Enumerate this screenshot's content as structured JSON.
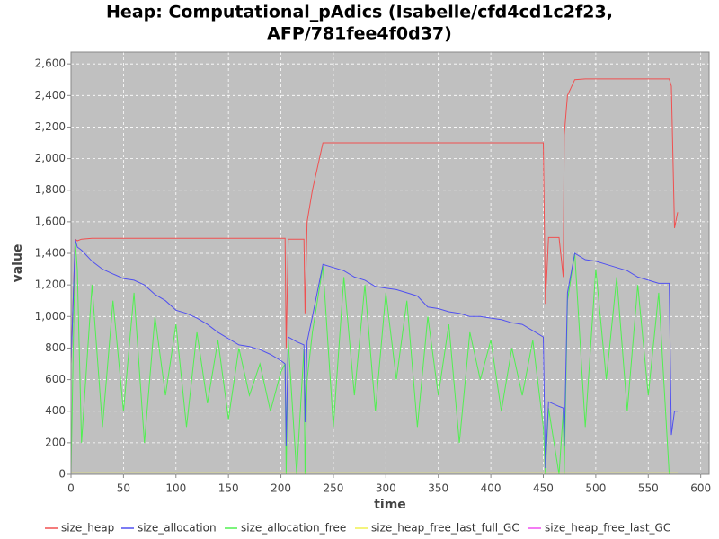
{
  "chart_data": {
    "type": "line",
    "title": "Heap: Computational_pAdics (Isabelle/cfd4cd1c2f23,",
    "subtitle": "AFP/781fee4f0d37)",
    "x_label": "time",
    "y_label": "value",
    "xlim": [
      0,
      608
    ],
    "ylim": [
      0,
      2675
    ],
    "xticks": [
      0,
      50,
      100,
      150,
      200,
      250,
      300,
      350,
      400,
      450,
      500,
      550,
      600
    ],
    "yticks": [
      0,
      200,
      400,
      600,
      800,
      {
        "value": 1000,
        "label": "1,000"
      },
      {
        "value": 1200,
        "label": "1,200"
      },
      {
        "value": 1400,
        "label": "1,400"
      },
      {
        "value": 1600,
        "label": "1,600"
      },
      {
        "value": 1800,
        "label": "1,800"
      },
      {
        "value": 2000,
        "label": "2,000"
      },
      {
        "value": 2200,
        "label": "2,200"
      },
      {
        "value": 2400,
        "label": "2,400"
      },
      {
        "value": 2600,
        "label": "2,600"
      }
    ],
    "grid": true,
    "x": [
      0,
      4,
      6,
      10,
      20,
      30,
      40,
      50,
      60,
      70,
      80,
      90,
      100,
      110,
      120,
      130,
      140,
      150,
      160,
      170,
      180,
      190,
      200,
      204,
      205,
      207,
      215,
      222,
      223,
      225,
      230,
      240,
      250,
      260,
      270,
      280,
      290,
      300,
      310,
      320,
      330,
      340,
      350,
      360,
      370,
      380,
      390,
      400,
      410,
      420,
      430,
      440,
      450,
      452,
      455,
      465,
      469,
      470,
      473,
      480,
      490,
      500,
      510,
      520,
      530,
      540,
      550,
      560,
      570,
      572,
      575,
      578
    ],
    "series": [
      {
        "name": "size_heap",
        "color": "#f05050",
        "values": [
          700,
          1490,
          1480,
          1490,
          1495,
          1495,
          1495,
          1495,
          1495,
          1495,
          1495,
          1495,
          1495,
          1495,
          1495,
          1495,
          1495,
          1495,
          1495,
          1495,
          1495,
          1495,
          1495,
          1495,
          800,
          1490,
          1490,
          1490,
          1020,
          1600,
          1800,
          2100,
          2100,
          2100,
          2100,
          2100,
          2100,
          2100,
          2100,
          2100,
          2100,
          2100,
          2100,
          2100,
          2100,
          2100,
          2100,
          2100,
          2100,
          2100,
          2100,
          2100,
          2100,
          1080,
          1500,
          1500,
          1250,
          2150,
          2400,
          2500,
          2505,
          2505,
          2505,
          2505,
          2505,
          2505,
          2505,
          2505,
          2505,
          2460,
          1560,
          1660
        ]
      },
      {
        "name": "size_allocation",
        "color": "#5050f0",
        "values": [
          700,
          1490,
          1440,
          1420,
          1350,
          1300,
          1270,
          1240,
          1230,
          1200,
          1140,
          1100,
          1040,
          1020,
          990,
          950,
          900,
          860,
          820,
          810,
          790,
          760,
          720,
          700,
          180,
          870,
          840,
          820,
          330,
          840,
          1000,
          1330,
          1310,
          1290,
          1250,
          1230,
          1190,
          1180,
          1170,
          1150,
          1130,
          1060,
          1050,
          1030,
          1020,
          1000,
          1000,
          990,
          980,
          960,
          950,
          910,
          870,
          40,
          460,
          430,
          420,
          180,
          1150,
          1400,
          1360,
          1350,
          1330,
          1310,
          1290,
          1250,
          1230,
          1210,
          1210,
          250,
          400,
          400
        ]
      },
      {
        "name": "size_allocation_free",
        "color": "#50f050",
        "values": [
          0,
          1480,
          1300,
          200,
          1200,
          300,
          1100,
          400,
          1150,
          200,
          1000,
          500,
          950,
          300,
          900,
          450,
          850,
          350,
          800,
          500,
          700,
          400,
          650,
          700,
          0,
          850,
          0,
          800,
          0,
          600,
          900,
          1320,
          300,
          1250,
          500,
          1200,
          400,
          1150,
          600,
          1100,
          300,
          1000,
          500,
          950,
          200,
          900,
          600,
          850,
          400,
          800,
          500,
          850,
          300,
          0,
          420,
          0,
          400,
          0,
          1100,
          1400,
          300,
          1300,
          600,
          1250,
          400,
          1200,
          500,
          1150,
          0,
          0,
          0,
          0
        ]
      },
      {
        "name": "size_heap_free_last_full_GC",
        "color": "#f0f050",
        "values": [
          10,
          10,
          10,
          10,
          10,
          10,
          10,
          10,
          10,
          10,
          10,
          10,
          10,
          10,
          10,
          10,
          10,
          10,
          10,
          10,
          10,
          10,
          10,
          10,
          10,
          10,
          10,
          10,
          10,
          10,
          10,
          10,
          10,
          10,
          10,
          10,
          10,
          10,
          10,
          10,
          10,
          10,
          10,
          10,
          10,
          10,
          10,
          10,
          10,
          10,
          10,
          10,
          10,
          10,
          10,
          10,
          10,
          10,
          10,
          10,
          10,
          10,
          10,
          10,
          10,
          10,
          10,
          10,
          10,
          10,
          10,
          10
        ]
      },
      {
        "name": "size_heap_free_last_GC",
        "color": "#f050f0",
        "values": [
          0,
          0,
          0,
          0,
          0,
          0,
          0,
          0,
          0,
          0,
          0,
          0,
          0,
          0,
          0,
          0,
          0,
          0,
          0,
          0,
          0,
          0,
          0,
          0,
          0,
          0,
          0,
          0,
          0,
          0,
          0,
          0,
          0,
          0,
          0,
          0,
          0,
          0,
          0,
          0,
          0,
          0,
          0,
          0,
          0,
          0,
          0,
          0,
          0,
          0,
          0,
          0,
          0,
          0,
          0,
          0,
          0,
          0,
          0,
          0,
          0,
          0,
          0,
          0,
          0,
          0,
          0,
          0,
          0,
          0,
          0,
          0
        ]
      }
    ]
  }
}
